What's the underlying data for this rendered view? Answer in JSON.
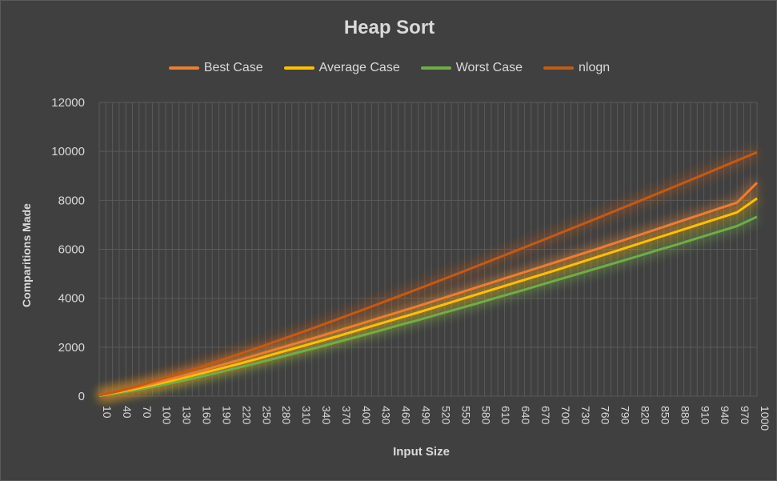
{
  "colors": {
    "background": "#404040",
    "best": "#ED7D31",
    "average": "#FFC000",
    "worst": "#70AD47",
    "nlogn": "#C55A11",
    "text": "#d9d9d9",
    "grid": "#5a5a5a"
  },
  "chart_data": {
    "type": "line",
    "title": "Heap Sort",
    "xlabel": "Input Size",
    "ylabel": "Comparitions Made",
    "ylim": [
      0,
      12000
    ],
    "yticks": [
      "0",
      "2000",
      "4000",
      "6000",
      "8000",
      "10000",
      "12000"
    ],
    "grid": true,
    "legend_position": "top",
    "x": [
      10,
      40,
      70,
      100,
      130,
      160,
      190,
      220,
      250,
      280,
      310,
      340,
      370,
      400,
      430,
      460,
      490,
      520,
      550,
      580,
      610,
      640,
      670,
      700,
      730,
      760,
      790,
      820,
      850,
      880,
      910,
      940,
      970,
      1000
    ],
    "xtick_labels": [
      "10",
      "40",
      "70",
      "100",
      "130",
      "160",
      "190",
      "220",
      "250",
      "280",
      "310",
      "340",
      "370",
      "400",
      "430",
      "460",
      "490",
      "520",
      "550",
      "580",
      "610",
      "640",
      "670",
      "700",
      "730",
      "760",
      "790",
      "820",
      "850",
      "880",
      "910",
      "940",
      "970",
      "1000"
    ],
    "series": [
      {
        "name": "Best Case",
        "values": [
          30,
          200,
          380,
          580,
          790,
          1010,
          1240,
          1470,
          1710,
          1950,
          2190,
          2430,
          2680,
          2930,
          3180,
          3430,
          3680,
          3940,
          4200,
          4460,
          4720,
          4980,
          5240,
          5500,
          5760,
          6020,
          6290,
          6560,
          6830,
          7100,
          7370,
          7640,
          7910,
          8720
        ]
      },
      {
        "name": "Average Case",
        "values": [
          20,
          170,
          330,
          510,
          700,
          900,
          1110,
          1320,
          1540,
          1770,
          2000,
          2230,
          2460,
          2700,
          2940,
          3180,
          3420,
          3670,
          3920,
          4170,
          4420,
          4670,
          4920,
          5170,
          5430,
          5690,
          5950,
          6210,
          6470,
          6730,
          6990,
          7250,
          7510,
          8080
        ]
      },
      {
        "name": "Worst Case",
        "values": [
          10,
          130,
          270,
          430,
          600,
          780,
          970,
          1170,
          1370,
          1580,
          1790,
          2000,
          2220,
          2440,
          2660,
          2890,
          3110,
          3340,
          3570,
          3800,
          4040,
          4270,
          4510,
          4750,
          4990,
          5230,
          5470,
          5710,
          5960,
          6200,
          6450,
          6700,
          6950,
          7330
        ]
      },
      {
        "name": "nlogn",
        "values": [
          33,
          213,
          429,
          664,
          913,
          1172,
          1440,
          1715,
          1991,
          2276,
          2564,
          2859,
          3158,
          3458,
          3765,
          4073,
          4382,
          4697,
          5012,
          5329,
          5650,
          5972,
          6294,
          6620,
          6948,
          7276,
          7605,
          7939,
          8273,
          8608,
          8944,
          9284,
          9625,
          9966
        ]
      }
    ]
  }
}
